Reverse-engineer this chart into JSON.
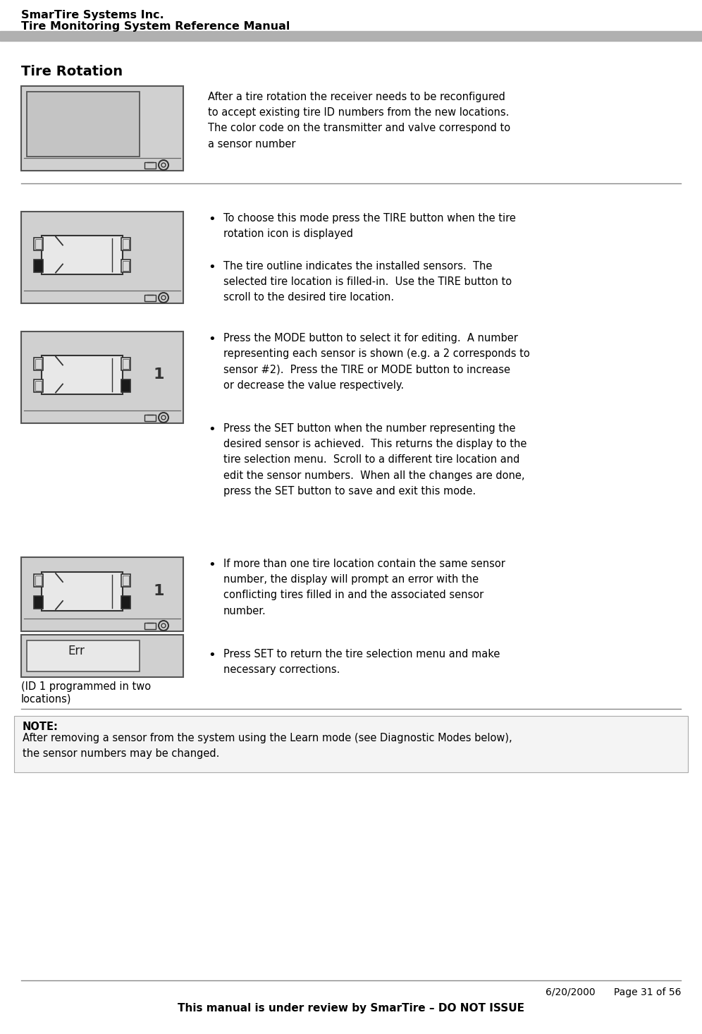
{
  "header_line1": "SmarTire Systems Inc.",
  "header_line2": "Tire Monitoring System Reference Manual",
  "section_title": "Tire Rotation",
  "intro_text": "After a tire rotation the receiver needs to be reconfigured\nto accept existing tire ID numbers from the new locations.\nThe color code on the transmitter and valve correspond to\na sensor number",
  "bullet1": "To choose this mode press the TIRE button when the tire\nrotation icon is displayed",
  "bullet2": "The tire outline indicates the installed sensors.  The\nselected tire location is filled-in.  Use the TIRE button to\nscroll to the desired tire location.",
  "bullet3": "Press the MODE button to select it for editing.  A number\nrepresenting each sensor is shown (e.g. a 2 corresponds to\nsensor #2).  Press the TIRE or MODE button to increase\nor decrease the value respectively.",
  "bullet4": "Press the SET button when the number representing the\ndesired sensor is achieved.  This returns the display to the\ntire selection menu.  Scroll to a different tire location and\nedit the sensor numbers.  When all the changes are done,\npress the SET button to save and exit this mode.",
  "bullet5": "If more than one tire location contain the same sensor\nnumber, the display will prompt an error with the\nconflicting tires filled in and the associated sensor\nnumber.",
  "bullet6": "Press SET to return the tire selection menu and make\nnecessary corrections.",
  "id_caption": "(ID 1 programmed in two\nlocations)",
  "note_title": "NOTE:",
  "note_text": "After removing a sensor from the system using the Learn mode (see Diagnostic Modes below),\nthe sensor numbers may be changed.",
  "footer_date": "6/20/2000",
  "footer_page": "Page 31 of 56",
  "footer_notice": "This manual is under review by SmarTire – DO NOT ISSUE",
  "bg_color": "#ffffff",
  "header_bar_color": "#b0b0b0",
  "display_bg": "#d0d0d0",
  "display_border": "#555555",
  "car_body_color": "#e8e8e8",
  "tire_filled_color": "#1a1a1a",
  "tire_empty_color": "#e8e8e8",
  "divider_color": "#888888"
}
